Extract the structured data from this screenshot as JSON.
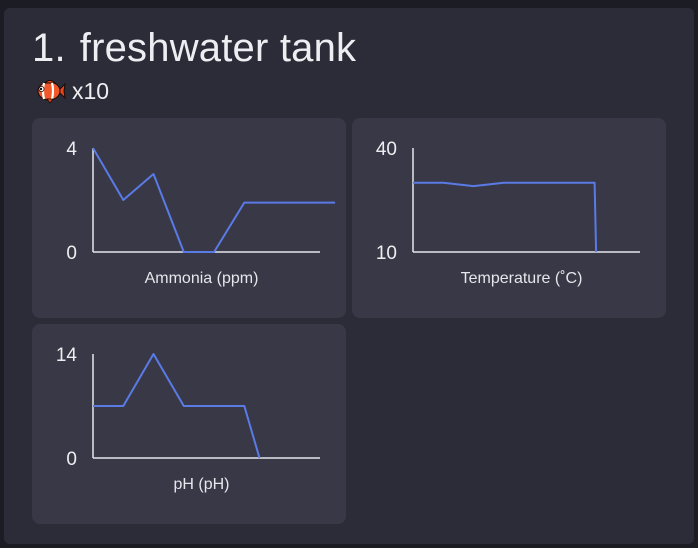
{
  "header": {
    "number": "1.",
    "title": "freshwater tank",
    "fish_icon": "clownfish-icon",
    "fish_count": "x10"
  },
  "colors": {
    "background": "#1c1c24",
    "panel": "#2c2c38",
    "card": "#383846",
    "series": "#5a7be6",
    "axis": "#e6e6ec"
  },
  "chart_data": [
    {
      "type": "line",
      "id": "ammonia",
      "xlabel": "Ammonia (ppm)",
      "ylim": [
        0,
        4
      ],
      "y_ticks": [
        "4",
        "0"
      ],
      "x": [
        0,
        1,
        2,
        3,
        4,
        5,
        6,
        7,
        8
      ],
      "values": [
        4,
        2,
        3,
        0,
        0,
        1.9,
        1.9,
        1.9,
        1.9
      ]
    },
    {
      "type": "line",
      "id": "temperature",
      "xlabel": "Temperature (˚C)",
      "ylim": [
        10,
        40
      ],
      "y_ticks": [
        "40",
        "10"
      ],
      "x": [
        0,
        1,
        2,
        3,
        4,
        5,
        6,
        6.05
      ],
      "values": [
        30,
        30,
        29,
        30,
        30,
        30,
        30,
        10
      ]
    },
    {
      "type": "line",
      "id": "ph",
      "xlabel": "pH (pH)",
      "ylim": [
        0,
        14
      ],
      "y_ticks": [
        "14",
        "0"
      ],
      "x": [
        0,
        1,
        2,
        3,
        4,
        5,
        5.5
      ],
      "values": [
        7,
        7,
        14,
        7,
        7,
        7,
        0
      ]
    }
  ]
}
